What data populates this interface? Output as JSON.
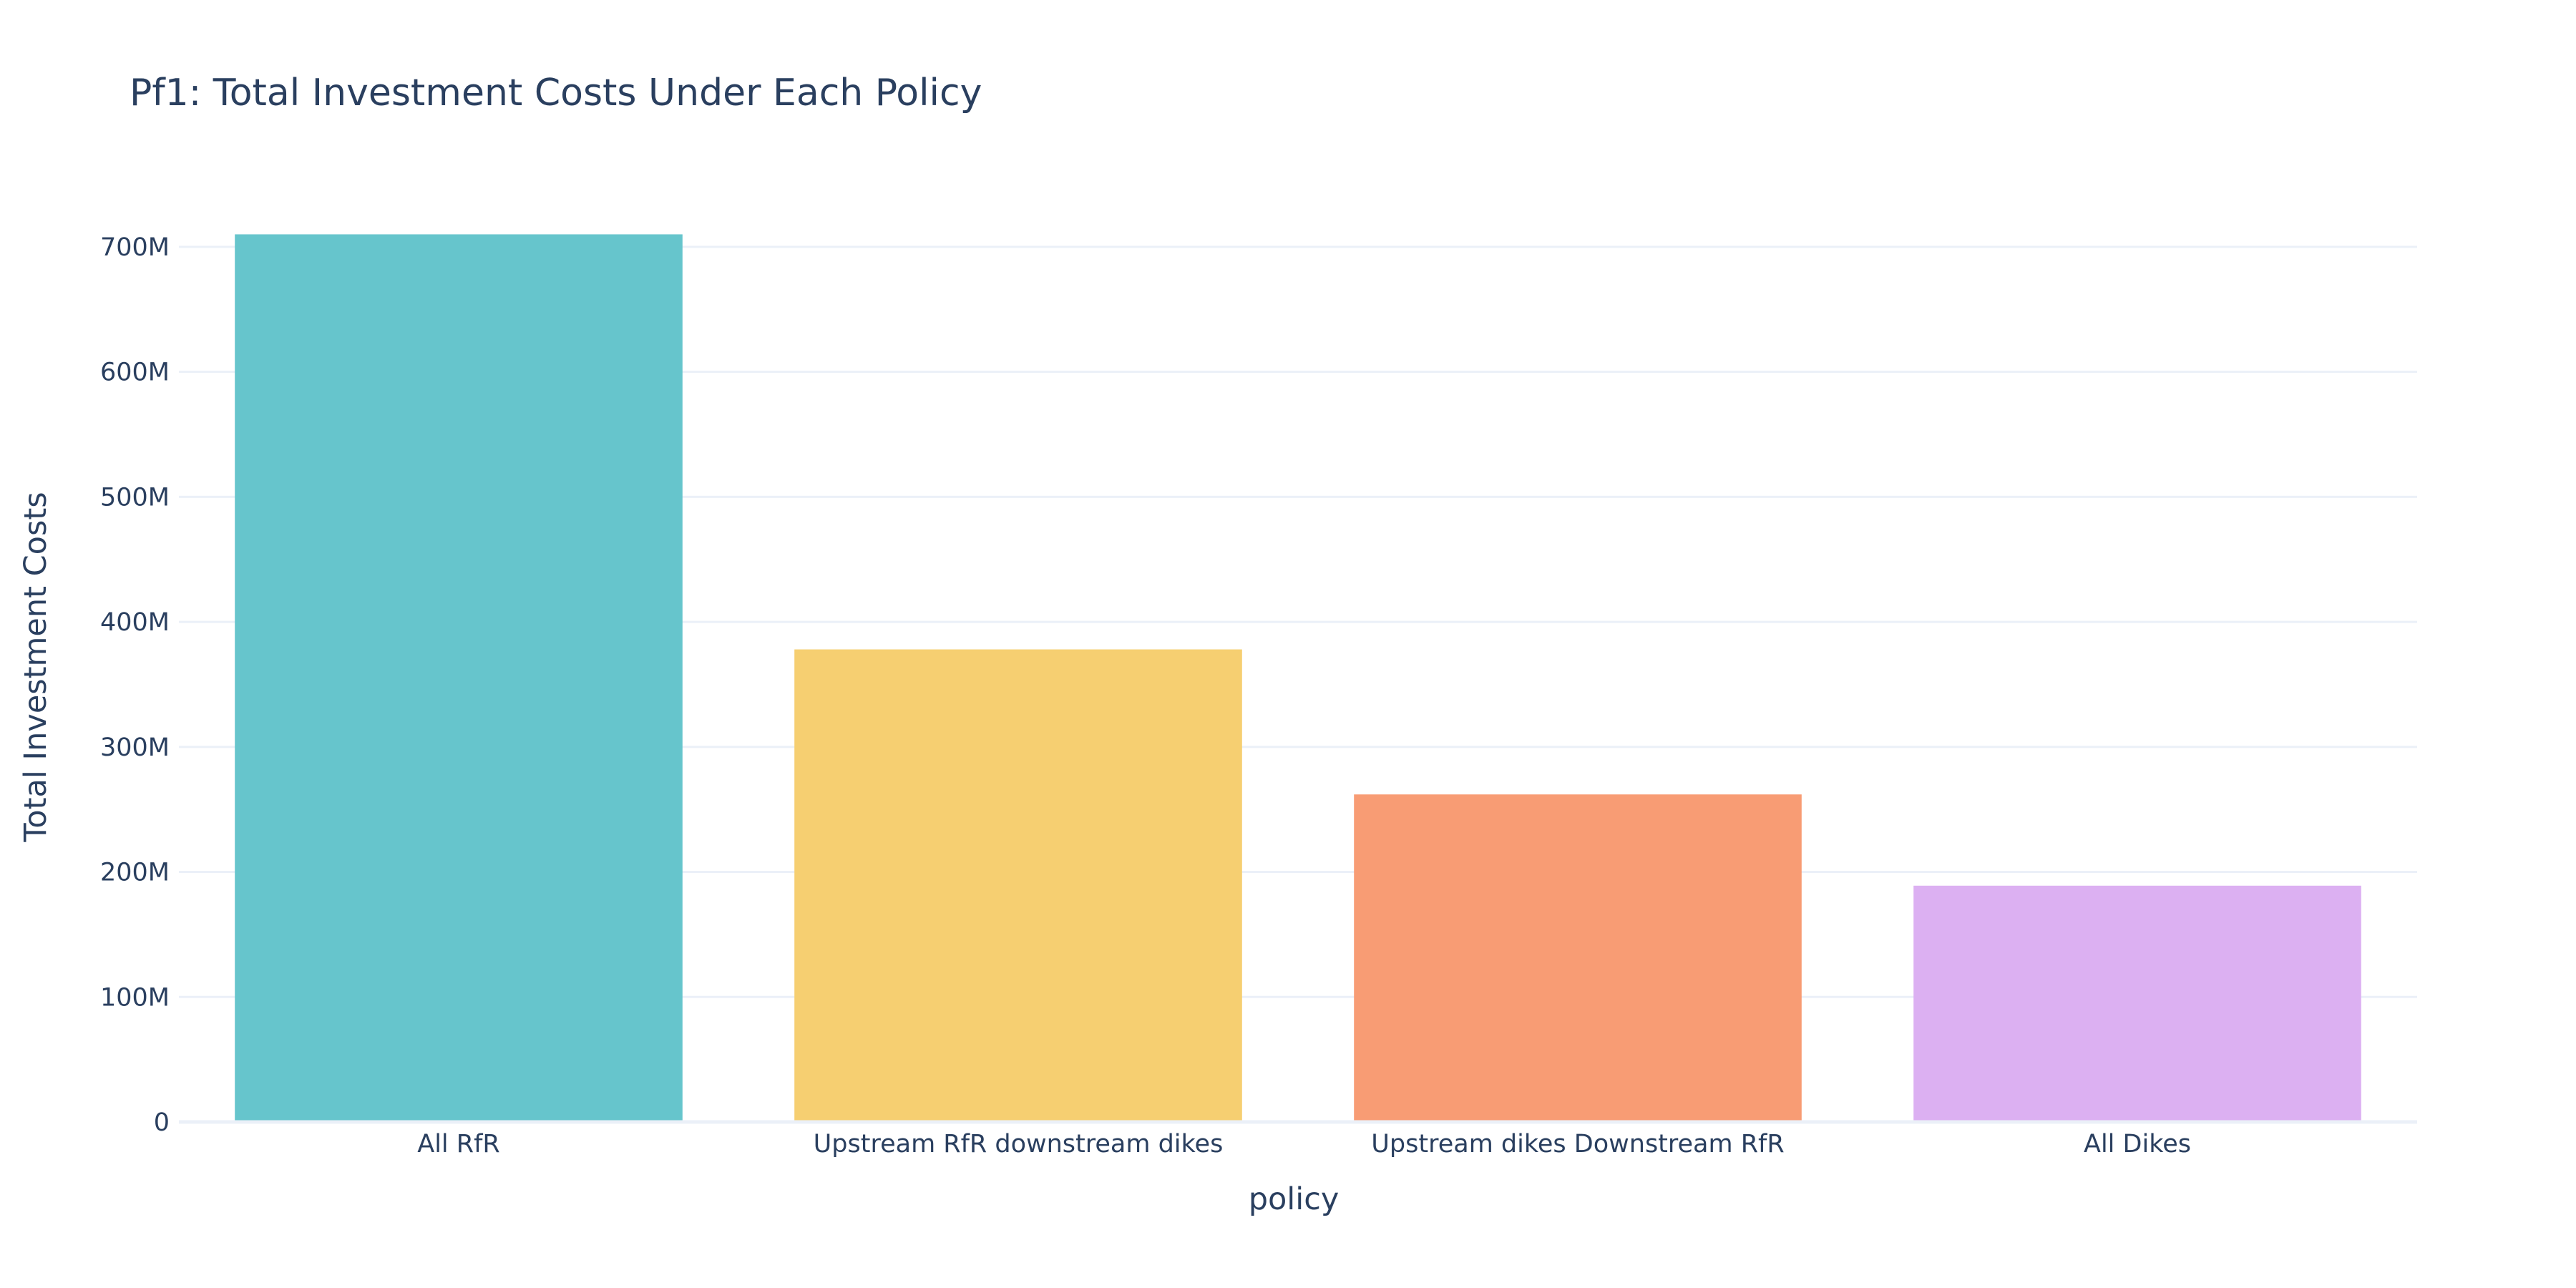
{
  "chart_data": {
    "type": "bar",
    "title": "Pf1: Total Investment Costs Under Each Policy",
    "xlabel": "policy",
    "ylabel": "Total Investment Costs",
    "categories": [
      "All RfR",
      "Upstream RfR downstream dikes",
      "Upstream dikes Downstream RfR",
      "All Dikes"
    ],
    "values": [
      710000000,
      378000000,
      262000000,
      189000000
    ],
    "colors": [
      "#66c5cc",
      "#f6cf71",
      "#f89c74",
      "#dcb0f2"
    ],
    "ylim": [
      0,
      720000000
    ],
    "yticks": [
      0,
      100000000,
      200000000,
      300000000,
      400000000,
      500000000,
      600000000,
      700000000
    ],
    "ytick_labels": [
      "0",
      "100M",
      "200M",
      "300M",
      "400M",
      "500M",
      "600M",
      "700M"
    ],
    "grid": true,
    "legend": "none"
  }
}
